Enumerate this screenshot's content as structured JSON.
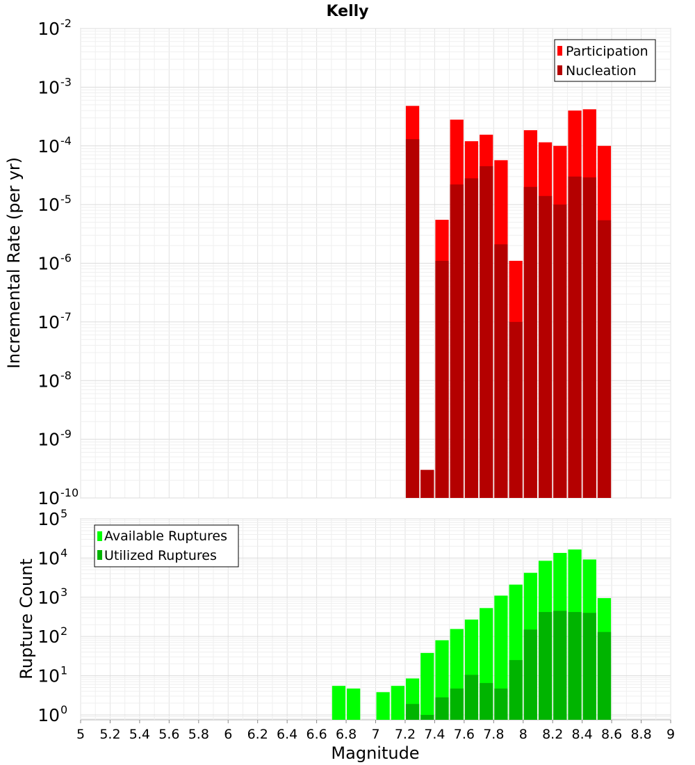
{
  "chart_data": [
    {
      "type": "bar",
      "title": "Kelly",
      "ylabel": "Incremental Rate (per yr)",
      "y_scale": "log",
      "ylim": [
        1e-10,
        0.01
      ],
      "y_ticks": [
        {
          "base": "10",
          "exp": "-10",
          "value": 1e-10
        },
        {
          "base": "10",
          "exp": "-9",
          "value": 1e-09
        },
        {
          "base": "10",
          "exp": "-8",
          "value": 1e-08
        },
        {
          "base": "10",
          "exp": "-7",
          "value": 1e-07
        },
        {
          "base": "10",
          "exp": "-6",
          "value": 1e-06
        },
        {
          "base": "10",
          "exp": "-5",
          "value": 1e-05
        },
        {
          "base": "10",
          "exp": "-4",
          "value": 0.0001
        },
        {
          "base": "10",
          "exp": "-3",
          "value": 0.001
        },
        {
          "base": "10",
          "exp": "-2",
          "value": 0.01
        }
      ],
      "grid": true,
      "legend_position": "top-right",
      "x": [
        7.25,
        7.35,
        7.45,
        7.55,
        7.65,
        7.75,
        7.85,
        7.95,
        8.05,
        8.15,
        8.25,
        8.35,
        8.45,
        8.55
      ],
      "series": [
        {
          "name": "Participation",
          "color": "#ff0000",
          "values": [
            0.00048,
            3e-10,
            5.5e-06,
            0.00028,
            0.00012,
            0.000155,
            5.7e-05,
            1.1e-06,
            0.000185,
            0.000115,
            0.0001,
            0.0004,
            0.00042,
            0.0001
          ]
        },
        {
          "name": "Nucleation",
          "color": "#b40000",
          "values": [
            0.00013,
            3e-10,
            1.1e-06,
            2.2e-05,
            2.8e-05,
            4.5e-05,
            2.1e-06,
            1e-07,
            2e-05,
            1.4e-05,
            1e-05,
            3e-05,
            2.9e-05,
            5.4e-06
          ]
        }
      ]
    },
    {
      "type": "bar",
      "ylabel": "Rupture Count",
      "xlabel": "Magnitude",
      "y_scale": "log",
      "ylim": [
        0.75,
        100000.0
      ],
      "y_ticks": [
        {
          "base": "10",
          "exp": "0",
          "value": 1
        },
        {
          "base": "10",
          "exp": "1",
          "value": 10
        },
        {
          "base": "10",
          "exp": "2",
          "value": 100
        },
        {
          "base": "10",
          "exp": "3",
          "value": 1000
        },
        {
          "base": "10",
          "exp": "4",
          "value": 10000
        },
        {
          "base": "10",
          "exp": "5",
          "value": 100000
        }
      ],
      "xlim": [
        5,
        9
      ],
      "x_ticks": [
        "5",
        "5.2",
        "5.4",
        "5.6",
        "5.8",
        "6",
        "6.2",
        "6.4",
        "6.6",
        "6.8",
        "7",
        "7.2",
        "7.4",
        "7.6",
        "7.8",
        "8",
        "8.2",
        "8.4",
        "8.6",
        "8.8",
        "9"
      ],
      "grid": true,
      "legend_position": "top-left",
      "x": [
        6.75,
        6.85,
        7.05,
        7.15,
        7.25,
        7.35,
        7.45,
        7.55,
        7.65,
        7.75,
        7.85,
        7.95,
        8.05,
        8.15,
        8.25,
        8.35,
        8.45,
        8.55
      ],
      "series": [
        {
          "name": "Available Ruptures",
          "color": "#00ff00",
          "values": [
            5.5,
            4.7,
            3.8,
            5.5,
            8.5,
            38,
            80,
            155,
            270,
            530,
            1100,
            2100,
            4200,
            8500,
            13500,
            16500,
            9200,
            950
          ]
        },
        {
          "name": "Utilized Ruptures",
          "color": "#00b400",
          "values": [
            0,
            0,
            0,
            0,
            1.9,
            1.0,
            2.8,
            4.7,
            10.5,
            6.5,
            4.7,
            25,
            150,
            420,
            450,
            420,
            400,
            130
          ]
        }
      ]
    }
  ]
}
